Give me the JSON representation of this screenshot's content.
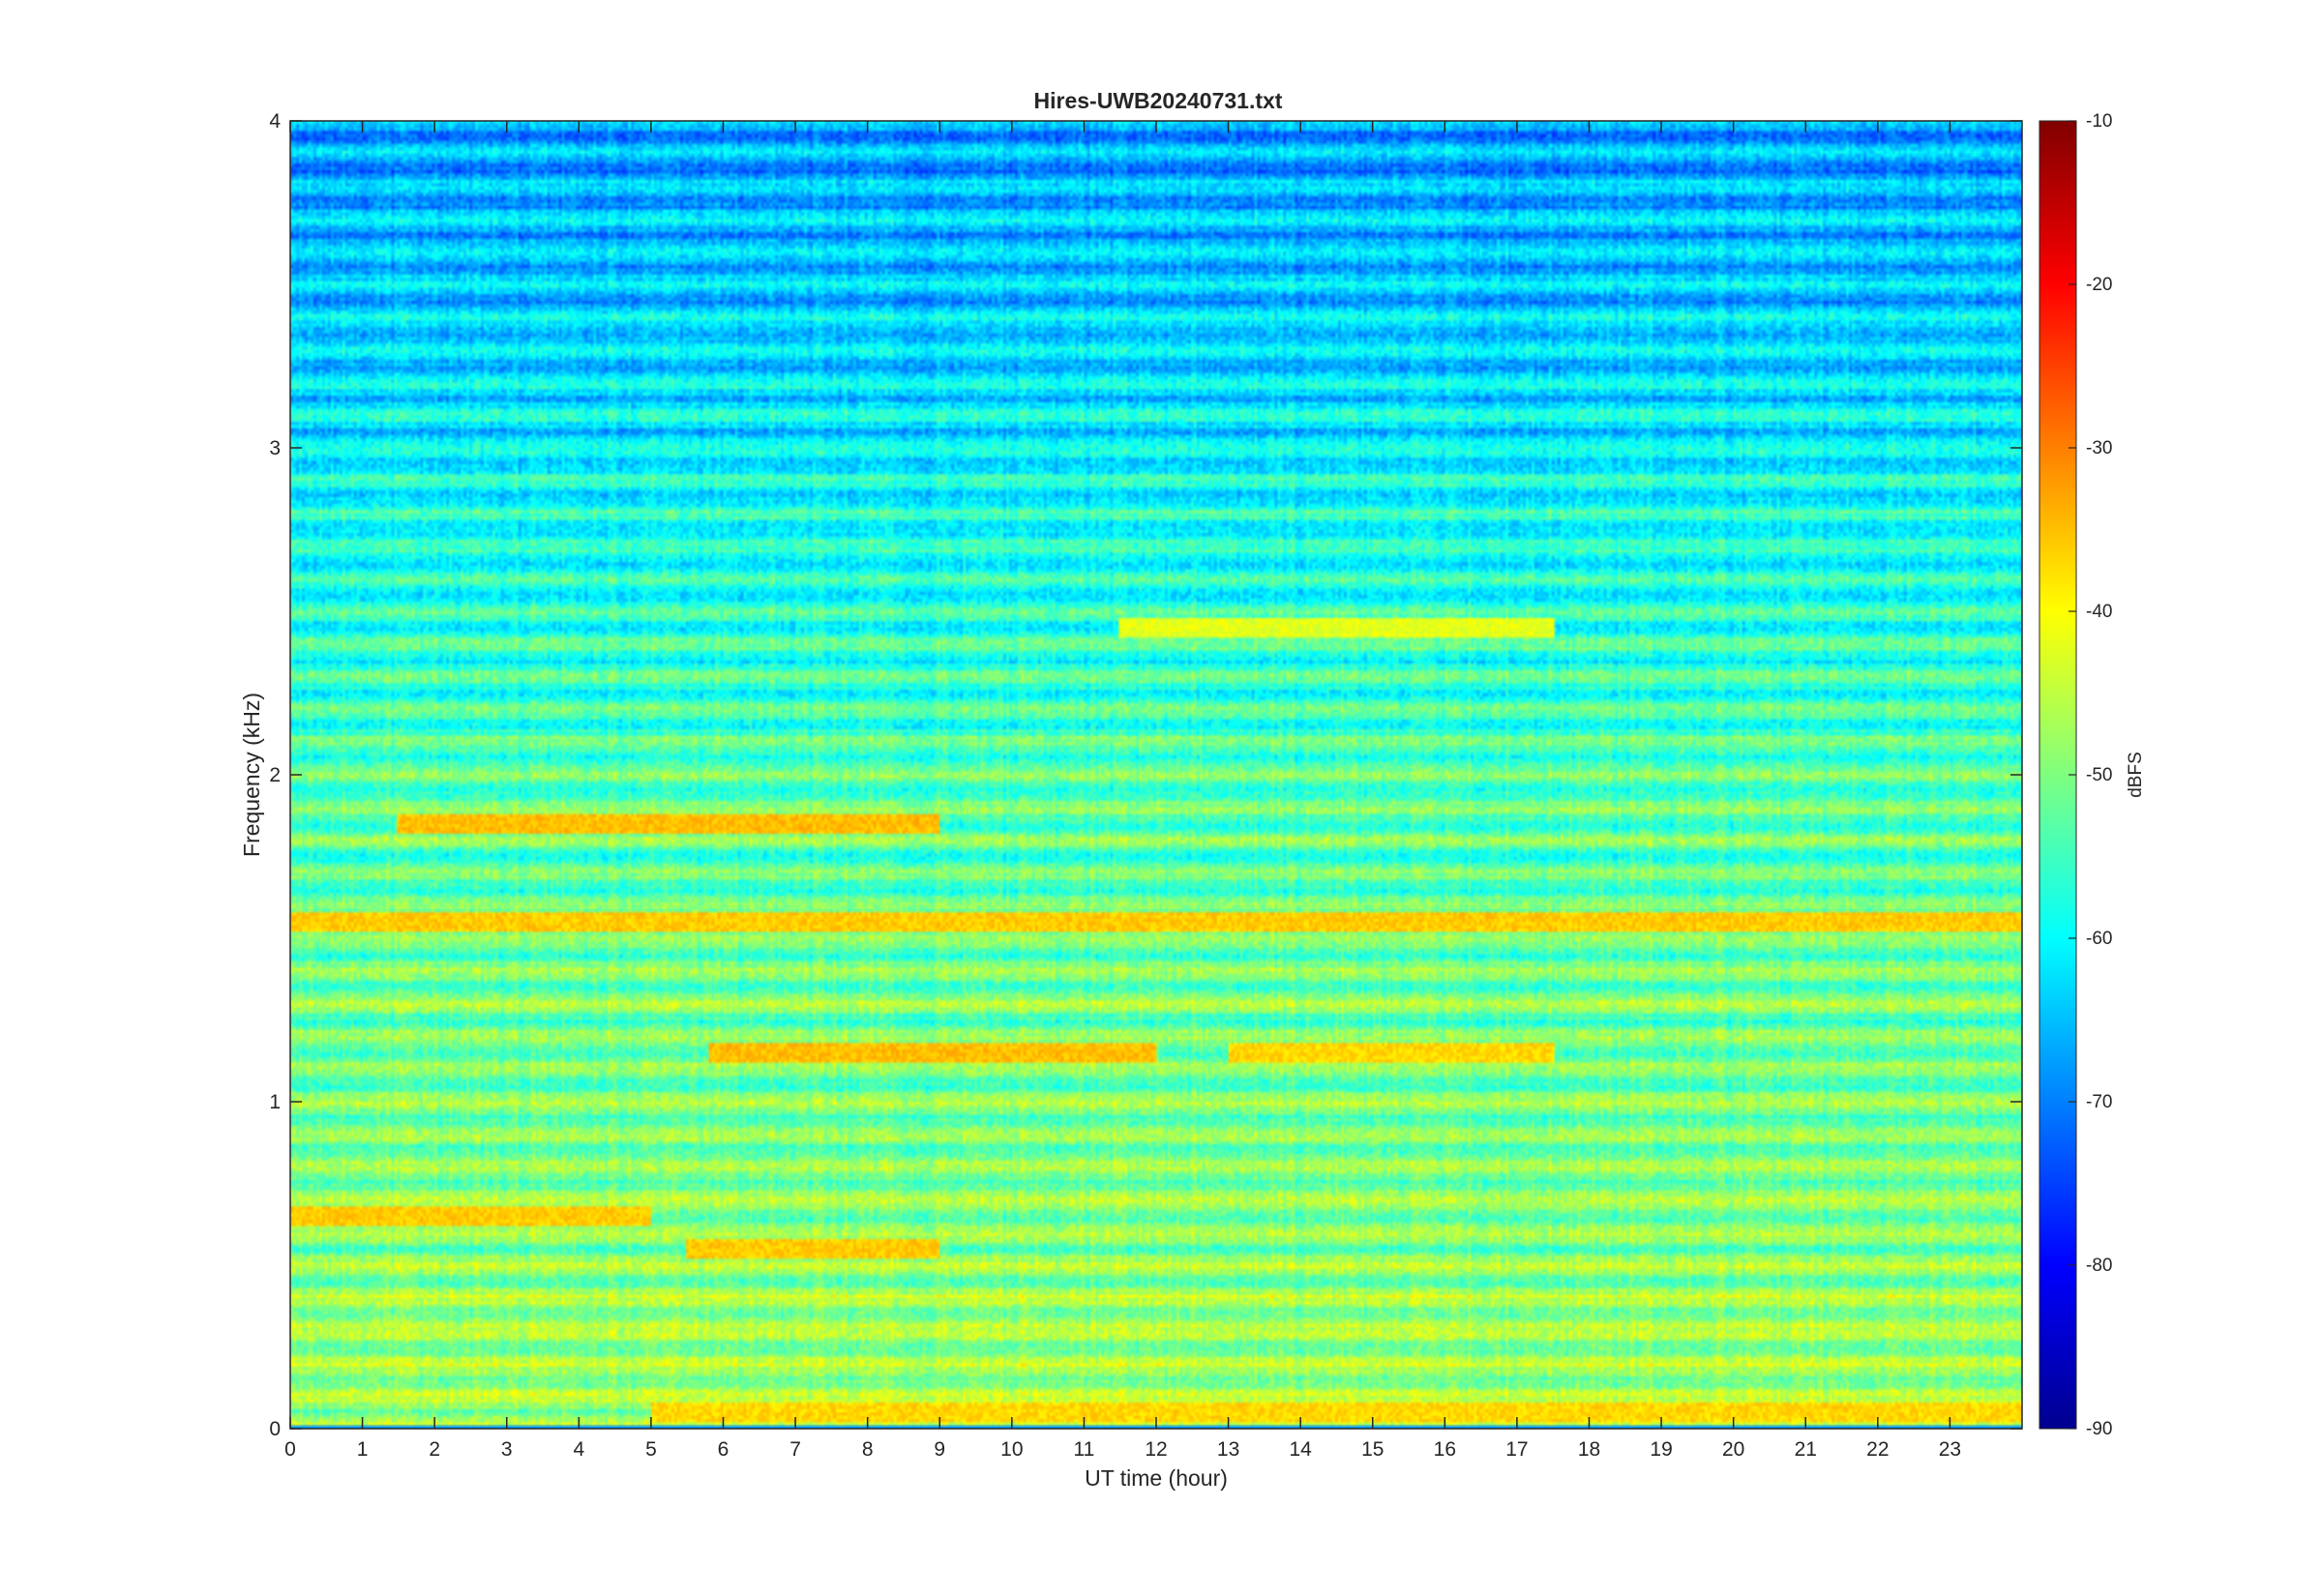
{
  "chart_data": {
    "type": "heatmap",
    "title": "Hires-UWB20240731.txt",
    "xlabel": "UT time (hour)",
    "ylabel": "Frequency (kHz)",
    "xlim": [
      0,
      24
    ],
    "ylim": [
      0,
      4
    ],
    "x_ticks": [
      "0",
      "1",
      "2",
      "3",
      "4",
      "5",
      "6",
      "7",
      "8",
      "9",
      "10",
      "11",
      "12",
      "13",
      "14",
      "15",
      "16",
      "17",
      "18",
      "19",
      "20",
      "21",
      "22",
      "23"
    ],
    "y_ticks": [
      "0",
      "1",
      "2",
      "3",
      "4"
    ],
    "colorbar": {
      "label": "dBFS",
      "range": [
        -90,
        -10
      ],
      "ticks": [
        "-90",
        "-80",
        "-70",
        "-60",
        "-50",
        "-40",
        "-30",
        "-20",
        "-10"
      ],
      "colormap": "jet"
    },
    "noise_floor_dbfs": -65,
    "features": [
      {
        "freq_khz": 0.05,
        "t_start": 5,
        "t_end": 24,
        "level_dbfs": -37
      },
      {
        "freq_khz": 1.15,
        "t_start": 5.8,
        "t_end": 12,
        "level_dbfs": -35
      },
      {
        "freq_khz": 1.15,
        "t_start": 13,
        "t_end": 17.5,
        "level_dbfs": -37
      },
      {
        "freq_khz": 1.85,
        "t_start": 1.5,
        "t_end": 9,
        "level_dbfs": -35
      },
      {
        "freq_khz": 1.55,
        "t_start": 0,
        "t_end": 24,
        "level_dbfs": -36
      },
      {
        "freq_khz": 0.65,
        "t_start": 0,
        "t_end": 5,
        "level_dbfs": -36
      },
      {
        "freq_khz": 0.55,
        "t_start": 5.5,
        "t_end": 9,
        "level_dbfs": -36
      },
      {
        "freq_khz": 2.45,
        "t_start": 11.5,
        "t_end": 17.5,
        "level_dbfs": -42
      }
    ]
  }
}
